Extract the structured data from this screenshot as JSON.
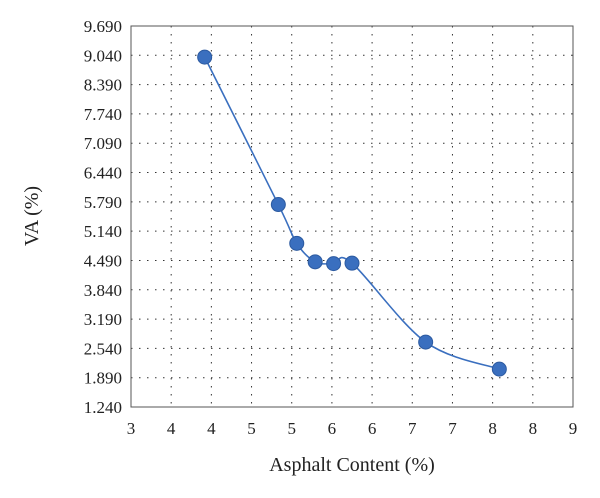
{
  "chart_data": {
    "type": "scatter",
    "title": "",
    "xlabel": "Asphalt Content (%)",
    "ylabel": "VA (%)",
    "xlim": [
      3,
      9
    ],
    "ylim": [
      1.24,
      9.69
    ],
    "x_tick_labels": [
      "3",
      "4",
      "4",
      "5",
      "5",
      "6",
      "6",
      "7",
      "7",
      "8",
      "8",
      "9"
    ],
    "y_tick_labels": [
      "1.240",
      "1.890",
      "2.540",
      "3.190",
      "3.840",
      "4.490",
      "5.140",
      "5.790",
      "6.440",
      "7.090",
      "7.740",
      "8.390",
      "9.040",
      "9.690"
    ],
    "grid": true,
    "legend": "none",
    "series": [
      {
        "color": "#3a6fbf",
        "marker": "circle",
        "line": "smooth",
        "x": [
          4.0,
          5.0,
          5.25,
          5.5,
          5.75,
          6.0,
          7.0,
          8.0
        ],
        "y": [
          9.0,
          5.73,
          4.87,
          4.46,
          4.42,
          4.43,
          2.68,
          2.08
        ]
      }
    ]
  }
}
